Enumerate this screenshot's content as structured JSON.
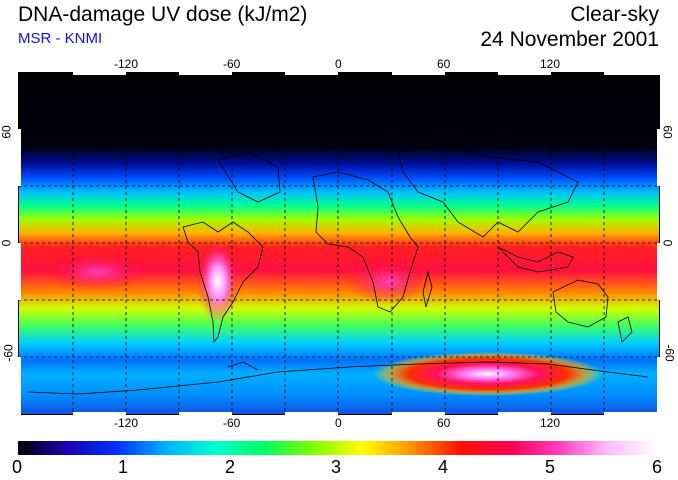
{
  "header": {
    "title": "DNA-damage UV dose (kJ/m2)",
    "subtitle": "MSR - KNMI",
    "sky": "Clear-sky",
    "date": "24 November 2001"
  },
  "map": {
    "lon_ticks": [
      "-120",
      "-60",
      "0",
      "60",
      "120"
    ],
    "lat_ticks_left": [
      "60",
      "0",
      "-60"
    ],
    "lat_ticks_right": [
      "60",
      "0",
      "-60"
    ],
    "grid": true,
    "projection": "equirectangular"
  },
  "colorbar": {
    "labels": [
      "0",
      "1",
      "2",
      "3",
      "4",
      "5",
      "6"
    ],
    "range": [
      0,
      6
    ],
    "colors": [
      "#000000",
      "#1a00b0",
      "#0030ff",
      "#00b0ff",
      "#00ffd0",
      "#00ff60",
      "#80ff00",
      "#ffff00",
      "#ff9000",
      "#ff1000",
      "#ff0050",
      "#ff40c0",
      "#ffc0ff",
      "#ffffff"
    ]
  }
}
